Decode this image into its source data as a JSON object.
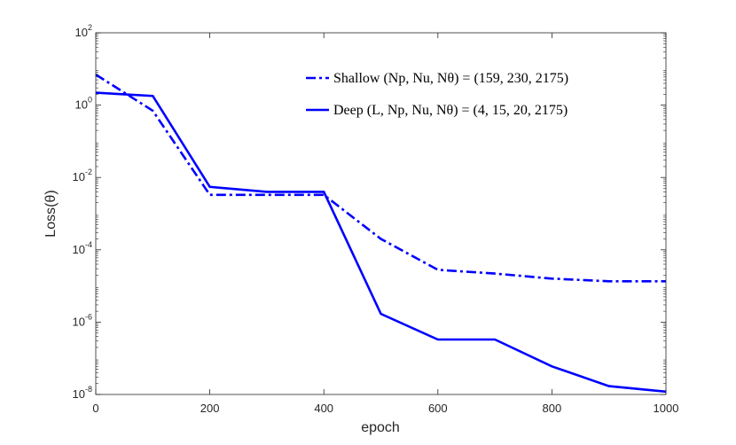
{
  "chart_data": {
    "type": "line",
    "xlabel": "epoch",
    "ylabel": "Loss(θ)",
    "xlim": [
      0,
      1000
    ],
    "ylim": [
      1e-08,
      100
    ],
    "yscale": "log",
    "x_ticks": [
      0,
      200,
      400,
      600,
      800,
      1000
    ],
    "x_tick_labels": [
      "0",
      "200",
      "400",
      "600",
      "800",
      "1000"
    ],
    "y_ticks": [
      1e-08,
      1e-06,
      0.0001,
      0.01,
      1,
      100
    ],
    "y_tick_labels": [
      {
        "base": "10",
        "exp": "-8"
      },
      {
        "base": "10",
        "exp": "-6"
      },
      {
        "base": "10",
        "exp": "-4"
      },
      {
        "base": "10",
        "exp": "-2"
      },
      {
        "base": "10",
        "exp": "0"
      },
      {
        "base": "10",
        "exp": "2"
      }
    ],
    "grid": false,
    "legend_position": "top-right",
    "series": [
      {
        "name": "Shallow (N_p, N_u, N_θ) = (159, 230, 2175)",
        "legend_label": "Shallow (Np, Nu, Nθ) = (159, 230, 2175)",
        "color": "#0000ff",
        "style": "dashdot",
        "x": [
          0,
          100,
          200,
          300,
          400,
          500,
          600,
          700,
          800,
          900,
          1000
        ],
        "y": [
          7,
          0.7,
          0.0033,
          0.0033,
          0.0033,
          0.0002,
          2.8e-05,
          2.2e-05,
          1.6e-05,
          1.35e-05,
          1.35e-05
        ]
      },
      {
        "name": "Deep (L, N_p, N_u, N_θ) = (4, 15, 20, 2175)",
        "legend_label": "Deep (L, Np, Nu, Nθ) = (4, 15, 20, 2175)",
        "color": "#0000ff",
        "style": "solid",
        "x": [
          0,
          100,
          200,
          300,
          400,
          500,
          600,
          700,
          800,
          900,
          1000
        ],
        "y": [
          2.2,
          1.8,
          0.0055,
          0.004,
          0.004,
          1.7e-06,
          3.3e-07,
          3.3e-07,
          6e-08,
          1.7e-08,
          1.2e-08
        ]
      }
    ]
  }
}
